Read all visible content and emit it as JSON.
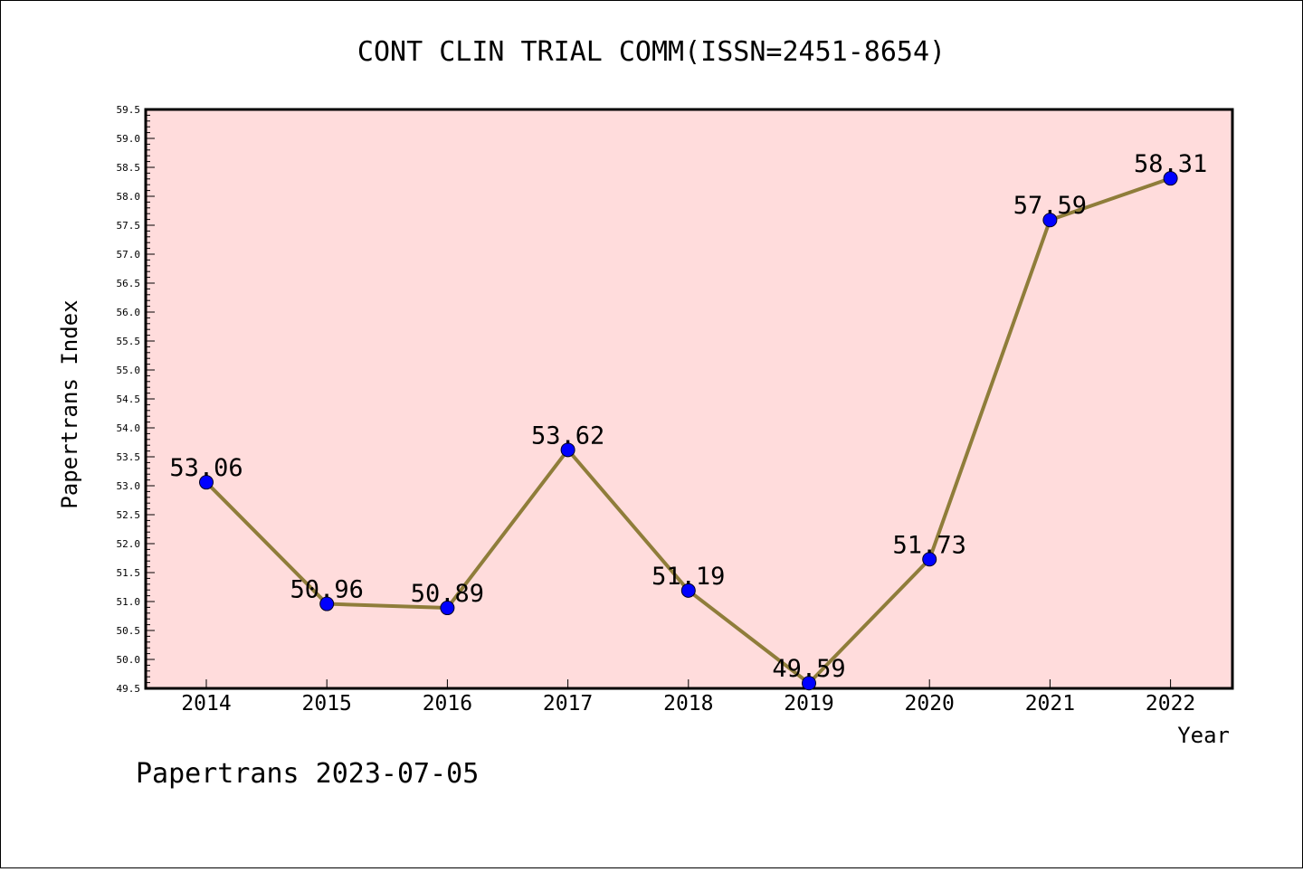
{
  "chart_data": {
    "type": "line",
    "title": "CONT CLIN TRIAL COMM(ISSN=2451-8654)",
    "xlabel": "Year",
    "ylabel": "Papertrans Index",
    "ylim": [
      49.5,
      59.5
    ],
    "ytick_step": 0.5,
    "grid": false,
    "categories": [
      "2014",
      "2015",
      "2016",
      "2017",
      "2018",
      "2019",
      "2020",
      "2021",
      "2022"
    ],
    "series": [
      {
        "values": [
          53.06,
          50.96,
          50.89,
          53.62,
          51.19,
          49.59,
          51.73,
          57.59,
          58.31
        ],
        "labels": [
          "53.06",
          "50.96",
          "50.89",
          "53.62",
          "51.19",
          "49.59",
          "51.73",
          "57.59",
          "58.31"
        ],
        "line_color": "#8f7d3a",
        "marker_color": "#0000ff"
      }
    ],
    "plot_background": "#ffdcdc"
  },
  "footer": {
    "text": "Papertrans 2023-07-05"
  }
}
